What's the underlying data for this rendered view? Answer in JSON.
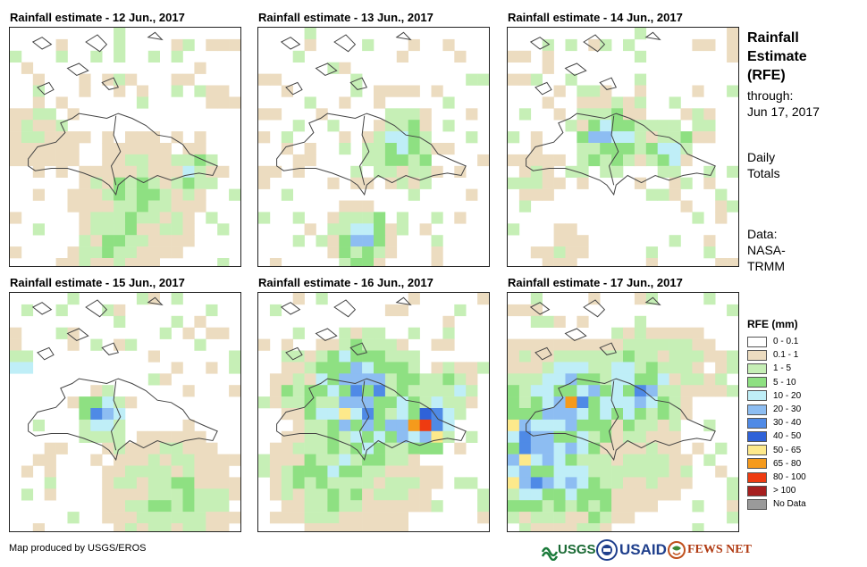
{
  "panels": [
    {
      "title": "Rainfall estimate - 12 Jun., 2017"
    },
    {
      "title": "Rainfall estimate - 13 Jun., 2017"
    },
    {
      "title": "Rainfall estimate - 14 Jun., 2017"
    },
    {
      "title": "Rainfall estimate - 15 Jun., 2017"
    },
    {
      "title": "Rainfall estimate - 16 Jun., 2017"
    },
    {
      "title": "Rainfall estimate - 17 Jun., 2017"
    }
  ],
  "side": {
    "title_lines": [
      "Rainfall",
      "Estimate",
      "(RFE)"
    ],
    "through_label": "through:",
    "through_date": "Jun 17, 2017",
    "totals_lines": [
      "Daily",
      "Totals"
    ],
    "data_lines": [
      "Data:",
      "NASA-",
      "TRMM"
    ]
  },
  "legend": {
    "title": "RFE (mm)",
    "items": [
      {
        "label": "0 - 0.1",
        "color": "#ffffff"
      },
      {
        "label": "0.1 - 1",
        "color": "#ecdcc0"
      },
      {
        "label": "1 - 5",
        "color": "#c6efb6"
      },
      {
        "label": "5 - 10",
        "color": "#8ee082"
      },
      {
        "label": "10 - 20",
        "color": "#bfeef7"
      },
      {
        "label": "20 - 30",
        "color": "#8dbdf2"
      },
      {
        "label": "30 - 40",
        "color": "#4f8ae6"
      },
      {
        "label": "40 - 50",
        "color": "#2f62d8"
      },
      {
        "label": "50 - 65",
        "color": "#fde98b"
      },
      {
        "label": "65 - 80",
        "color": "#f59a1c"
      },
      {
        "label": "80 - 100",
        "color": "#ee3b11"
      },
      {
        "label": "> 100",
        "color": "#a61f1f"
      },
      {
        "label": "No Data",
        "color": "#9a9a9a"
      }
    ]
  },
  "footer": {
    "text": "Map produced by USGS/EROS"
  },
  "logos": {
    "usgs": "USGS",
    "usaid": "USAID",
    "fewsnet": "FEWS NET"
  }
}
